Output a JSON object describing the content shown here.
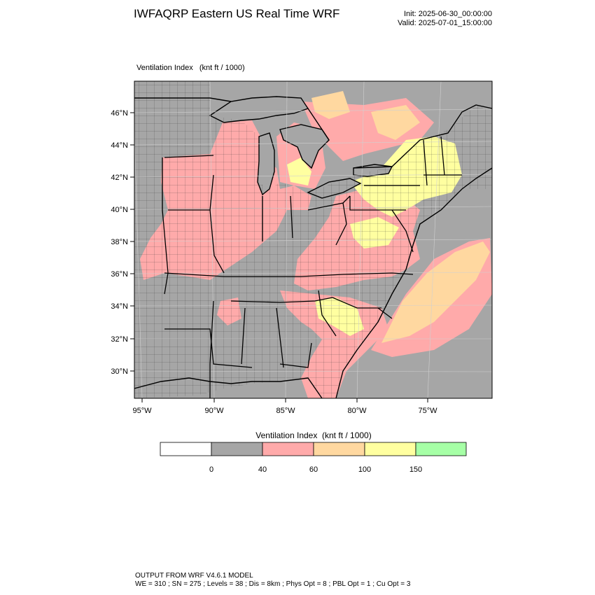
{
  "header": {
    "title": "IWFAQRP Eastern US Real Time WRF",
    "init": "Init: 2025-06-30_00:00:00",
    "valid": "Valid: 2025-07-01_15:00:00"
  },
  "map": {
    "field_label": "Ventilation Index   (knt ft / 1000)",
    "lat_labels": [
      "46°N",
      "44°N",
      "42°N",
      "40°N",
      "38°N",
      "36°N",
      "34°N",
      "32°N",
      "30°N"
    ],
    "lon_labels": [
      "95°W",
      "90°W",
      "85°W",
      "80°W",
      "75°W"
    ],
    "colors": {
      "land_low": "#a6a6a6",
      "water": "#a6a6a6",
      "cat_40_60": "#ffaaaa",
      "cat_60_100": "#ffd8a0",
      "cat_100_150": "#ffffa0"
    }
  },
  "legend": {
    "title": "Ventilation Index  (knt ft / 1000)",
    "bins": [
      {
        "color": "#ffffff"
      },
      {
        "color": "#a6a6a6"
      },
      {
        "color": "#ffaaaa"
      },
      {
        "color": "#ffd8a0"
      },
      {
        "color": "#ffffa0"
      },
      {
        "color": "#a6ffa6"
      }
    ],
    "tick_labels": [
      "0",
      "40",
      "60",
      "100",
      "150"
    ]
  },
  "footer": {
    "line1": "OUTPUT FROM WRF V4.6.1 MODEL",
    "line2": "WE = 310 ; SN = 275 ; Levels = 38 ; Dis = 8km ; Phys Opt = 8 ; PBL Opt = 1 ; Cu Opt = 3"
  }
}
